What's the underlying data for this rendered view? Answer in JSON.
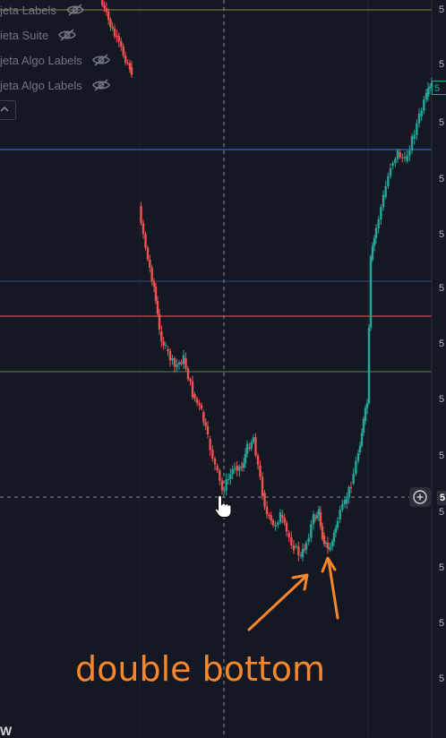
{
  "legend": {
    "items": [
      {
        "label": "jeta Labels"
      },
      {
        "label": "ieta Suite"
      },
      {
        "label": "jeta Algo Labels"
      },
      {
        "label": "jeta Algo Labels"
      }
    ]
  },
  "price_axis": {
    "tick_labels": [
      "5",
      "5",
      "5",
      "5",
      "5",
      "5",
      "5",
      "5",
      "5",
      "5",
      "5",
      "5",
      "5"
    ],
    "last_price_label": "5",
    "crosshair_label": "5"
  },
  "annotation": {
    "text": "double bottom",
    "color": "#f7862d"
  },
  "colors": {
    "background": "#141823",
    "up": "#26a69a",
    "down": "#ef5350",
    "line_yellow": "#8a8a3a",
    "line_blue": "#2458b8",
    "line_blue2": "#2a4f7a",
    "line_red": "#a5443f",
    "line_green": "#4b8a4a"
  },
  "logo_text": "W",
  "icons": {
    "legend_eye": "eye-off-icon",
    "collapse": "chevron-up-icon",
    "add": "plus-circle-icon",
    "cursor": "hand-pointer-icon",
    "arrows": "arrow-icon"
  }
}
